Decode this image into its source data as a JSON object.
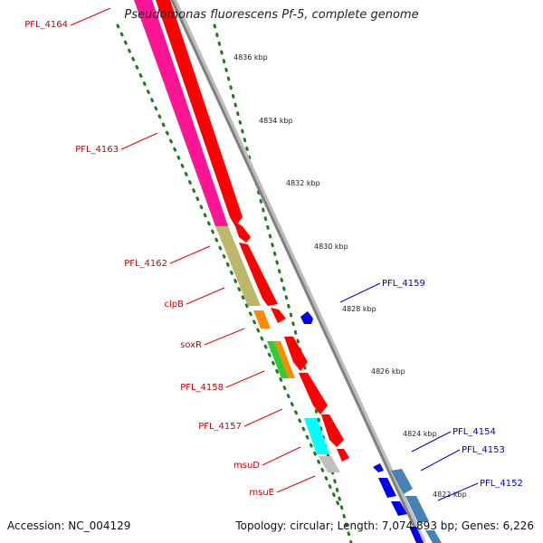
{
  "title": "Pseudomonas fluorescens Pf-5, complete genome",
  "accession": "Accession: NC_004129",
  "summary": "Topology: circular; Length: 7,074,893 bp; Genes: 6,226",
  "colors": {
    "backbone": "#8a8a8a",
    "forward_gene": "#ff0000",
    "reverse_gene": "#0000ee",
    "reverse_gene_alt": "#4682b4",
    "ruler_dots": "#1e7a1e",
    "label_forward": "#cc0000",
    "label_reverse": "#0000cc"
  },
  "ruler_ticks": [
    "4836 kbp",
    "4834 kbp",
    "4832 kbp",
    "4830 kbp",
    "4828 kbp",
    "4826 kbp",
    "4824 kbp",
    "4822 kbp"
  ],
  "gene_labels_left": [
    "PFL_4164",
    "PFL_4163",
    "PFL_4162",
    "clpB",
    "soxR",
    "PFL_4158",
    "PFL_4157",
    "msuD",
    "msuE"
  ],
  "gene_labels_right": [
    "PFL_4159",
    "PFL_4154",
    "PFL_4153",
    "PFL_4152"
  ],
  "category_colors": [
    "#ff1493",
    "#bdb76b",
    "#ff8c00",
    "#32cd32",
    "#00ffff",
    "#c0c0c0"
  ]
}
